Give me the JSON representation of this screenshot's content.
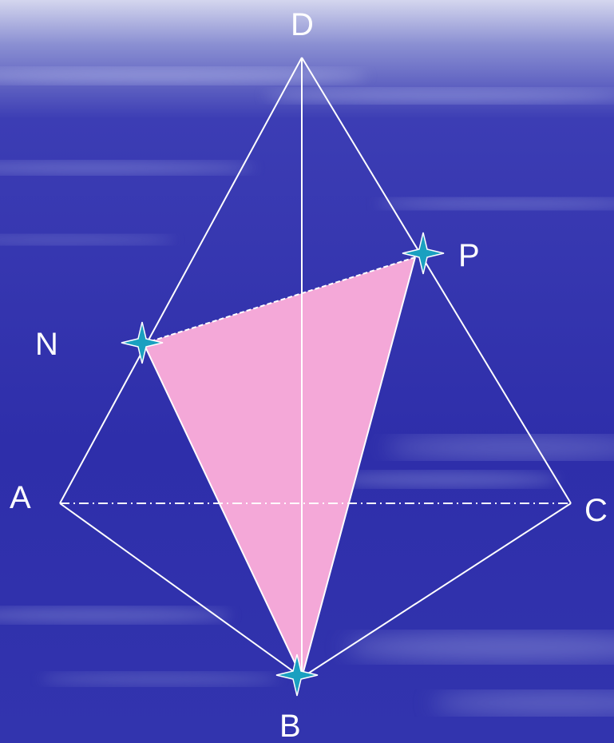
{
  "diagram": {
    "vertices": {
      "A": "A",
      "B": "B",
      "C": "C",
      "D": "D",
      "N": "N",
      "P": "P"
    },
    "colors": {
      "background_top": "#c9cbe8",
      "background_main": "#2f2fae",
      "edge": "#ffffff",
      "section_fill": "#f4a8d8",
      "star_marker": "#1aa0c0"
    },
    "marker_icon": "four-point-star-icon"
  }
}
